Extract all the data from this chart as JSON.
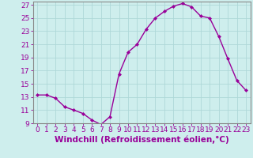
{
  "x": [
    0,
    1,
    2,
    3,
    4,
    5,
    6,
    7,
    8,
    9,
    10,
    11,
    12,
    13,
    14,
    15,
    16,
    17,
    18,
    19,
    20,
    21,
    22,
    23
  ],
  "y": [
    13.3,
    13.3,
    12.8,
    11.5,
    11.0,
    10.5,
    9.5,
    8.8,
    10.0,
    16.5,
    19.8,
    21.0,
    23.3,
    25.0,
    26.0,
    26.8,
    27.2,
    26.7,
    25.3,
    25.0,
    22.2,
    18.8,
    15.5,
    14.0
  ],
  "line_color": "#990099",
  "marker": "D",
  "marker_size": 2,
  "bg_color": "#ceeeed",
  "grid_color": "#aed8d8",
  "xlabel": "Windchill (Refroidissement éolien,°C)",
  "ylim": [
    9,
    27.5
  ],
  "yticks": [
    9,
    11,
    13,
    15,
    17,
    19,
    21,
    23,
    25,
    27
  ],
  "xticks": [
    0,
    1,
    2,
    3,
    4,
    5,
    6,
    7,
    8,
    9,
    10,
    11,
    12,
    13,
    14,
    15,
    16,
    17,
    18,
    19,
    20,
    21,
    22,
    23
  ],
  "tick_color": "#990099",
  "label_color": "#990099",
  "font_size": 6.5,
  "xlabel_fontsize": 7.5,
  "lw": 1.0
}
